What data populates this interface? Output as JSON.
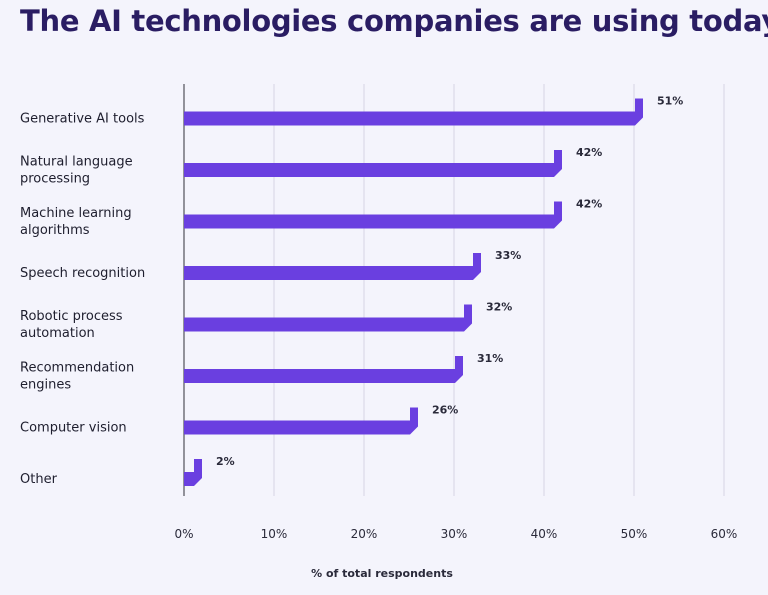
{
  "chart_data": {
    "type": "bar",
    "orientation": "horizontal",
    "title": "The AI technologies companies are using today",
    "categories": [
      [
        "Generative AI tools"
      ],
      [
        "Natural language",
        "processing"
      ],
      [
        "Machine learning",
        "algorithms"
      ],
      [
        "Speech recognition"
      ],
      [
        "Robotic process",
        "automation"
      ],
      [
        "Recommendation",
        "engines"
      ],
      [
        "Computer vision"
      ],
      [
        "Other"
      ]
    ],
    "values": [
      51,
      42,
      42,
      33,
      32,
      31,
      26,
      2
    ],
    "value_labels": [
      "51%",
      "42%",
      "42%",
      "33%",
      "32%",
      "31%",
      "26%",
      "2%"
    ],
    "xlabel": "% of total respondents",
    "xlim": [
      0,
      60
    ],
    "xticks": [
      0,
      10,
      20,
      30,
      40,
      50,
      60
    ],
    "xtick_labels": [
      "0%",
      "10%",
      "20%",
      "30%",
      "40%",
      "50%",
      "60%"
    ],
    "grid": "vertical",
    "bar_color": "#6a3fe0"
  }
}
